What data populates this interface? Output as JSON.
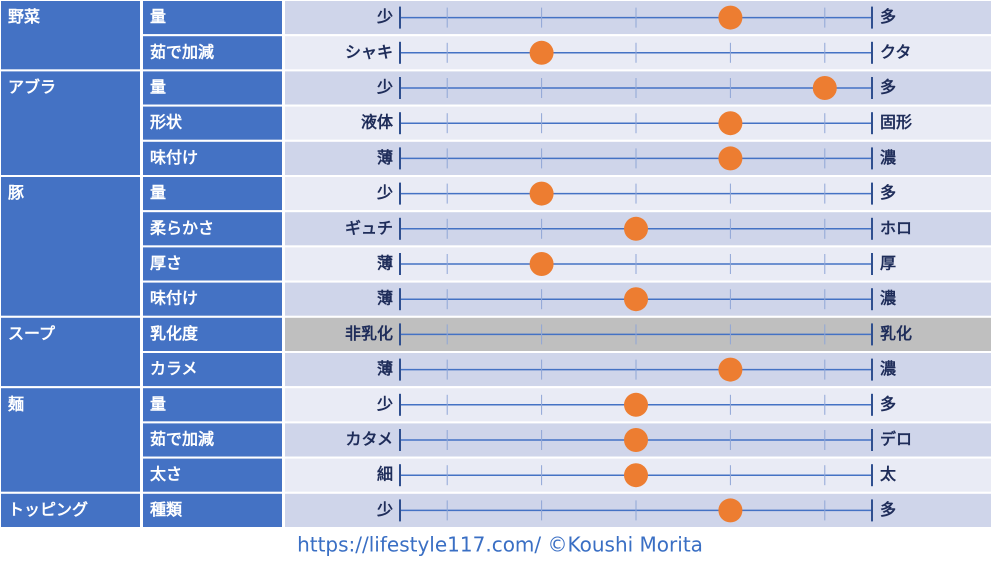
{
  "scale": {
    "range": [
      0.5,
      5.5
    ],
    "ticks": [
      1,
      2,
      3,
      4,
      5
    ]
  },
  "groups": [
    {
      "name": "野菜",
      "items": [
        {
          "label": "量",
          "left": "少",
          "right": "多",
          "value": 4
        },
        {
          "label": "茹で加減",
          "left": "シャキ",
          "right": "クタ",
          "value": 2
        }
      ]
    },
    {
      "name": "アブラ",
      "items": [
        {
          "label": "量",
          "left": "少",
          "right": "多",
          "value": 5
        },
        {
          "label": "形状",
          "left": "液体",
          "right": "固形",
          "value": 4
        },
        {
          "label": "味付け",
          "left": "薄",
          "right": "濃",
          "value": 4
        }
      ]
    },
    {
      "name": "豚",
      "items": [
        {
          "label": "量",
          "left": "少",
          "right": "多",
          "value": 2
        },
        {
          "label": "柔らかさ",
          "left": "ギュチ",
          "right": "ホロ",
          "value": 3
        },
        {
          "label": "厚さ",
          "left": "薄",
          "right": "厚",
          "value": 2
        },
        {
          "label": "味付け",
          "left": "薄",
          "right": "濃",
          "value": 3
        }
      ]
    },
    {
      "name": "スープ",
      "items": [
        {
          "label": "乳化度",
          "left": "非乳化",
          "right": "乳化",
          "value": null
        },
        {
          "label": "カラメ",
          "left": "薄",
          "right": "濃",
          "value": 4
        }
      ]
    },
    {
      "name": "麺",
      "items": [
        {
          "label": "量",
          "left": "少",
          "right": "多",
          "value": 3
        },
        {
          "label": "茹で加減",
          "left": "カタメ",
          "right": "デロ",
          "value": 3
        },
        {
          "label": "太さ",
          "left": "細",
          "right": "太",
          "value": 3
        }
      ]
    },
    {
      "name": "トッピング",
      "items": [
        {
          "label": "種類",
          "left": "少",
          "right": "多",
          "value": 4
        }
      ]
    }
  ],
  "footer": "https://lifestyle117.com/  ©Koushi Morita"
}
